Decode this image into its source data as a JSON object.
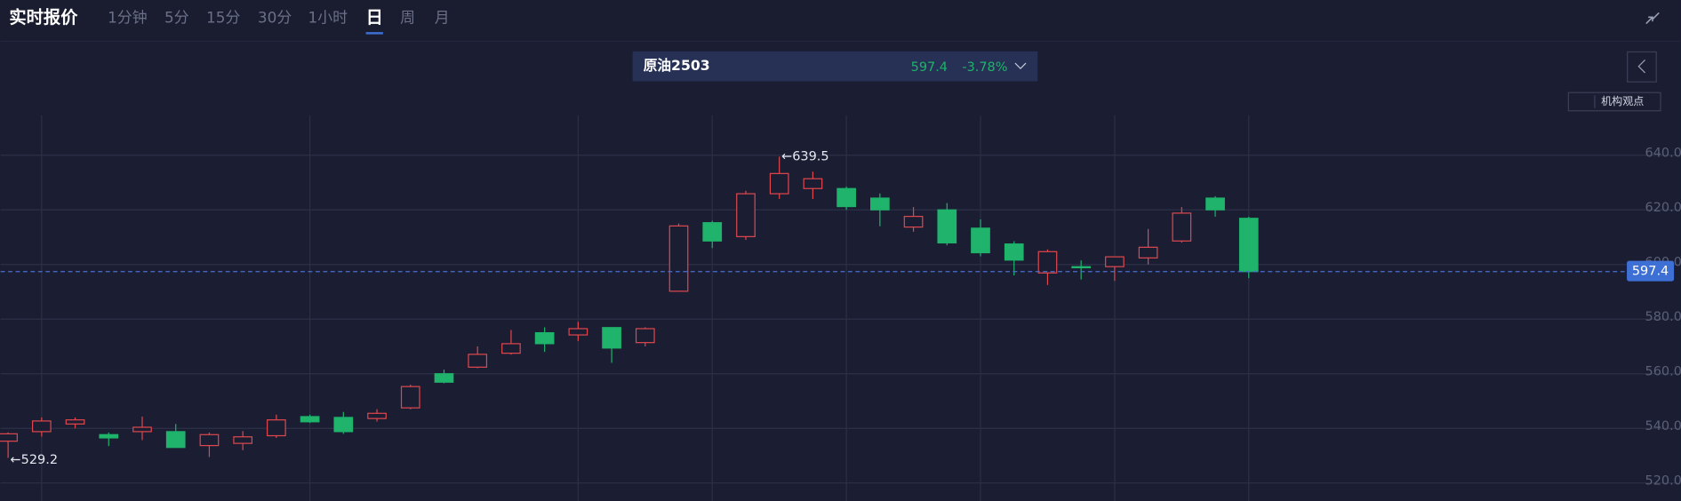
{
  "top_bar": {
    "title": "实时报价",
    "periods": [
      "1分钟",
      "5分",
      "15分",
      "30分",
      "1小时",
      "日",
      "周",
      "月"
    ],
    "selected": "日"
  },
  "header": {
    "name": "原油2503",
    "price": "597.4",
    "change": "-3.78%"
  },
  "button": "机构观点",
  "chart_data": {
    "type": "candlestick",
    "open": [
      535.3,
      538.8,
      541.6,
      537.7,
      538.8,
      538.8,
      533.7,
      534.5,
      537.3,
      544.3,
      544,
      543.6,
      547.5,
      560,
      562.4,
      567.5,
      575,
      574.2,
      576.9,
      571.4,
      590.2,
      615.3,
      610.2,
      625.9,
      627.8,
      627.8,
      624.3,
      613.7,
      620,
      613.3,
      607.5,
      596.9,
      599.2,
      599.2,
      602.4,
      608.6,
      624.3,
      616.9
    ],
    "high": [
      538.5,
      544,
      544,
      538.5,
      544.3,
      541.6,
      538.5,
      539,
      545,
      545,
      546,
      547,
      556,
      561.5,
      570,
      576,
      577,
      579,
      577,
      577,
      615,
      616,
      627,
      639.5,
      634,
      628.5,
      626,
      621,
      622.5,
      616.5,
      608.5,
      605.5,
      601.5,
      603,
      613,
      621,
      625,
      617.5
    ],
    "low": [
      529.2,
      537,
      540,
      533.5,
      535.7,
      533,
      529.5,
      532,
      536.5,
      542,
      538,
      542.5,
      547,
      556.5,
      562,
      567,
      568,
      572,
      564,
      570,
      590,
      606,
      609,
      624,
      624,
      620,
      614,
      612,
      607,
      603,
      596,
      592.5,
      594.5,
      594,
      600,
      608,
      617.5,
      595
    ],
    "close": [
      538,
      542.7,
      543.1,
      536.5,
      540.4,
      533,
      537.7,
      536.9,
      543.1,
      542.4,
      538.8,
      545.5,
      555.3,
      556.9,
      567.1,
      571,
      571,
      576.5,
      569.4,
      576.5,
      614.1,
      608.6,
      625.9,
      633.3,
      631.4,
      621.2,
      620,
      617.6,
      607.9,
      604.3,
      601.6,
      604.7,
      598.8,
      602.8,
      606.3,
      618.8,
      620,
      597.4
    ],
    "up_color": "#e0474c",
    "down_color": "#1fb36b",
    "ylim": [
      513.4,
      654.5
    ],
    "yticks": [
      {
        "value": 520,
        "label": "520.0"
      },
      {
        "value": 540,
        "label": "540.0"
      },
      {
        "value": 560,
        "label": "560.0"
      },
      {
        "value": 580,
        "label": "580.0"
      },
      {
        "value": 600,
        "label": "600.0"
      },
      {
        "value": 620,
        "label": "620.0"
      },
      {
        "value": 640,
        "label": "640.0"
      }
    ],
    "grid": true,
    "annotations": [
      {
        "value": 639.5,
        "label": "←639.5"
      },
      {
        "value": 529.2,
        "label": "←529.2"
      }
    ],
    "last_price": 597.4
  }
}
